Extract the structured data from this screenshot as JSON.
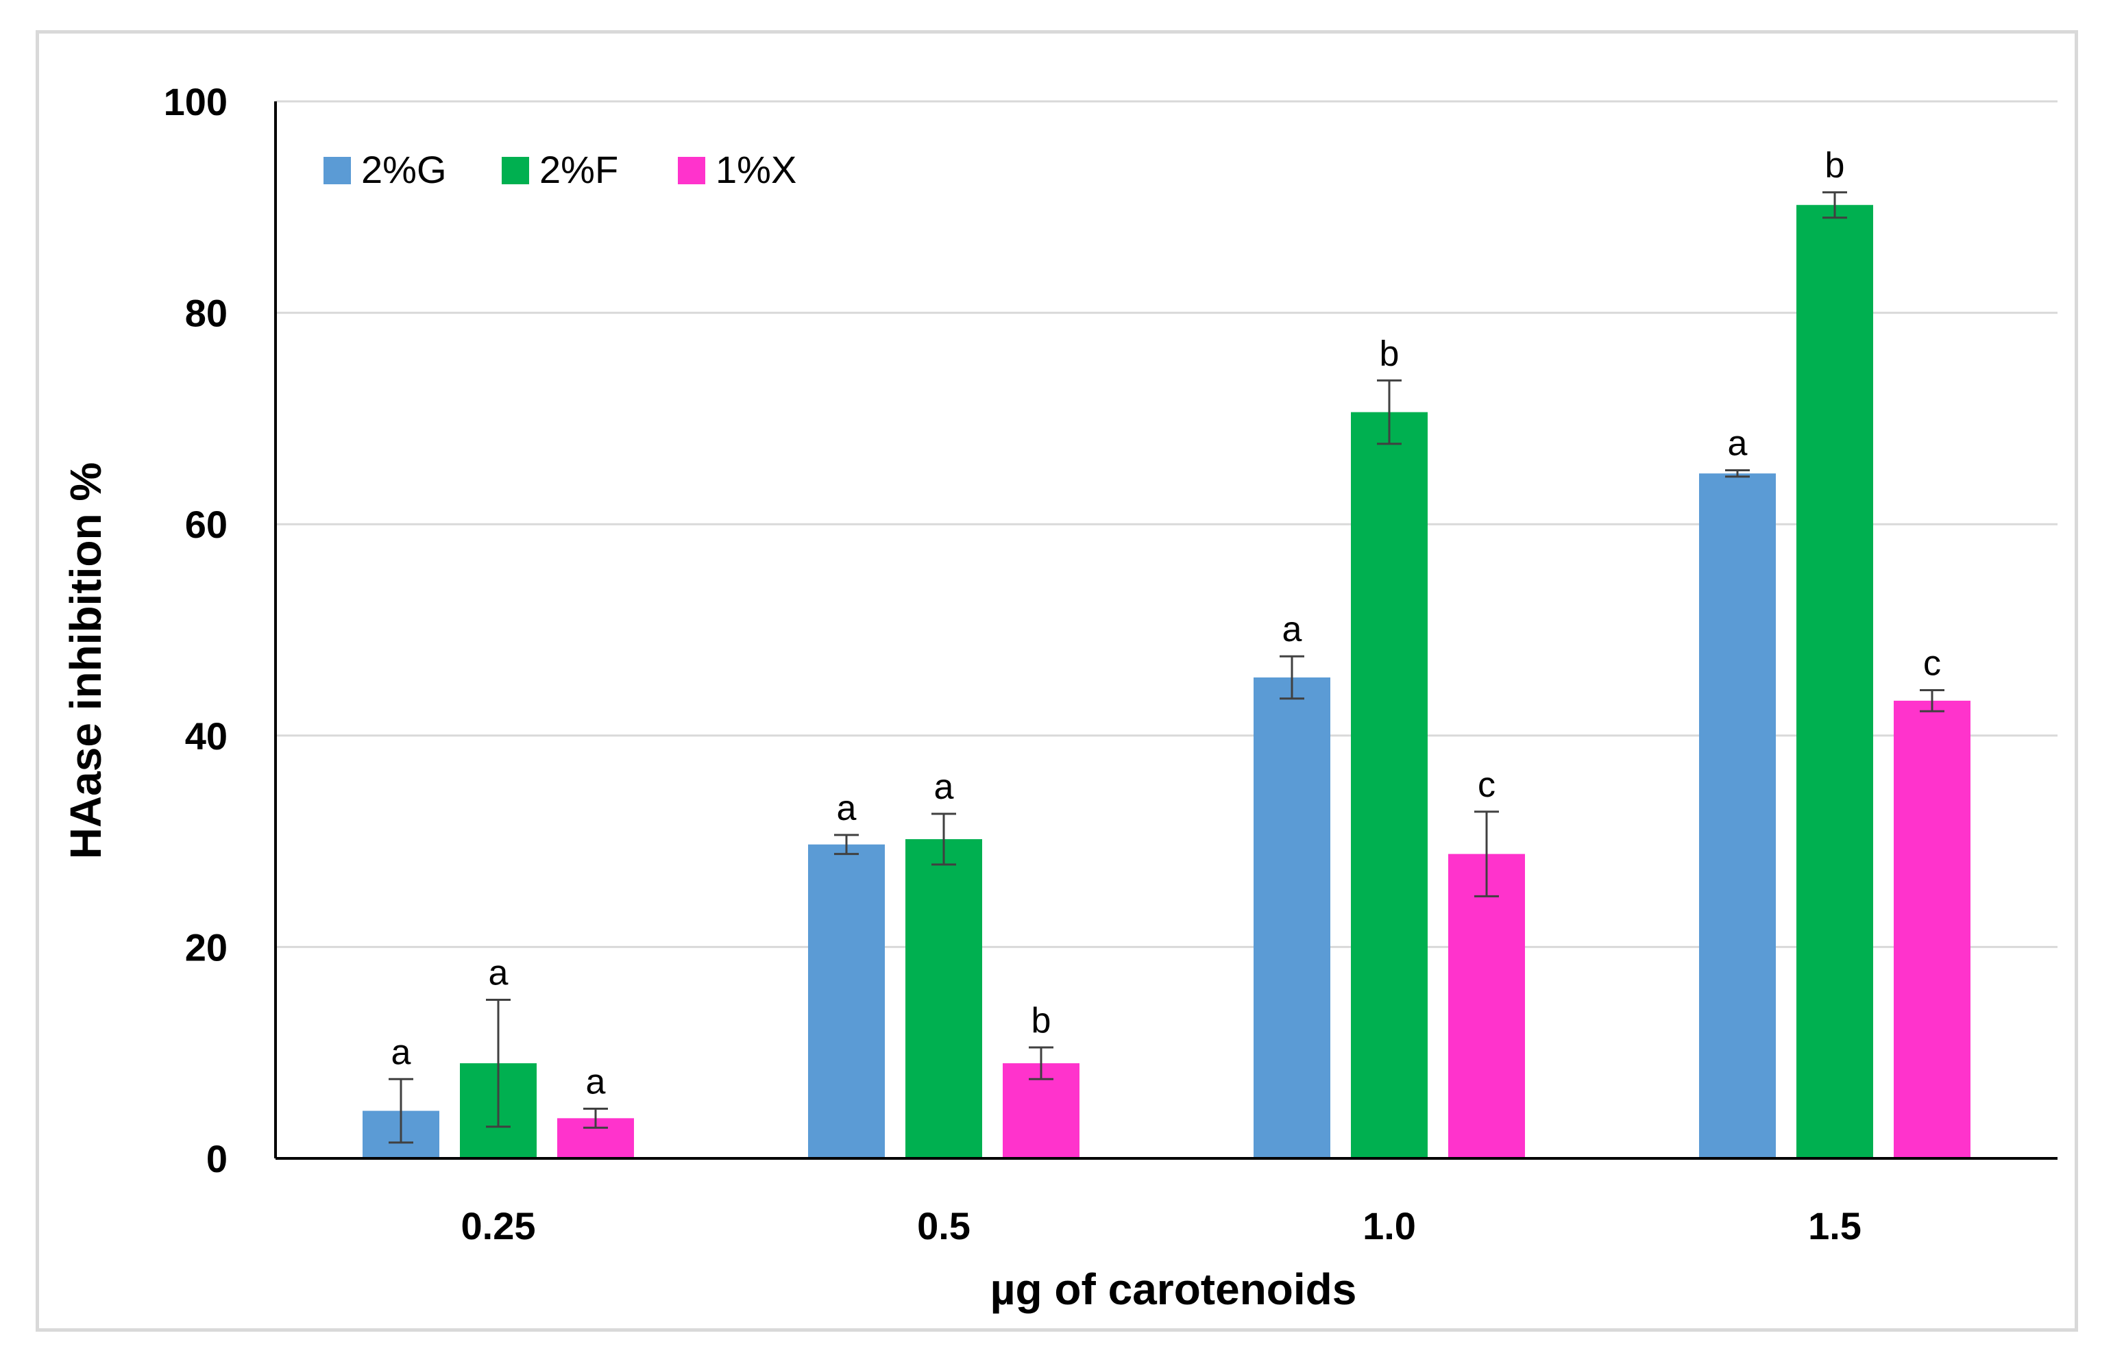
{
  "chart_data": {
    "type": "bar",
    "title": "",
    "xlabel": "µg of carotenoids",
    "ylabel": "HAase inhibition %",
    "categories": [
      "0.25",
      "0.5",
      "1.0",
      "1.5"
    ],
    "ylim": [
      0,
      100
    ],
    "yticks": [
      "0",
      "20",
      "40",
      "60",
      "80",
      "100"
    ],
    "grid": true,
    "legend_position": "top-left",
    "series": [
      {
        "name": "2%G",
        "color": "#5b9bd5",
        "values": [
          4.5,
          29.7,
          45.5,
          64.8
        ],
        "errors": [
          3.0,
          0.9,
          2.0,
          0.3
        ],
        "letters": [
          "a",
          "a",
          "a",
          "a"
        ]
      },
      {
        "name": "2%F",
        "color": "#00b050",
        "values": [
          9.0,
          30.2,
          70.6,
          90.2
        ],
        "errors": [
          6.0,
          2.4,
          3.0,
          1.2
        ],
        "letters": [
          "a",
          "a",
          "b",
          "b"
        ]
      },
      {
        "name": "1%X",
        "color": "#ff33cc",
        "values": [
          3.8,
          9.0,
          28.8,
          43.3
        ],
        "errors": [
          0.9,
          1.5,
          4.0,
          1.0
        ],
        "letters": [
          "a",
          "b",
          "c",
          "c"
        ]
      }
    ]
  }
}
